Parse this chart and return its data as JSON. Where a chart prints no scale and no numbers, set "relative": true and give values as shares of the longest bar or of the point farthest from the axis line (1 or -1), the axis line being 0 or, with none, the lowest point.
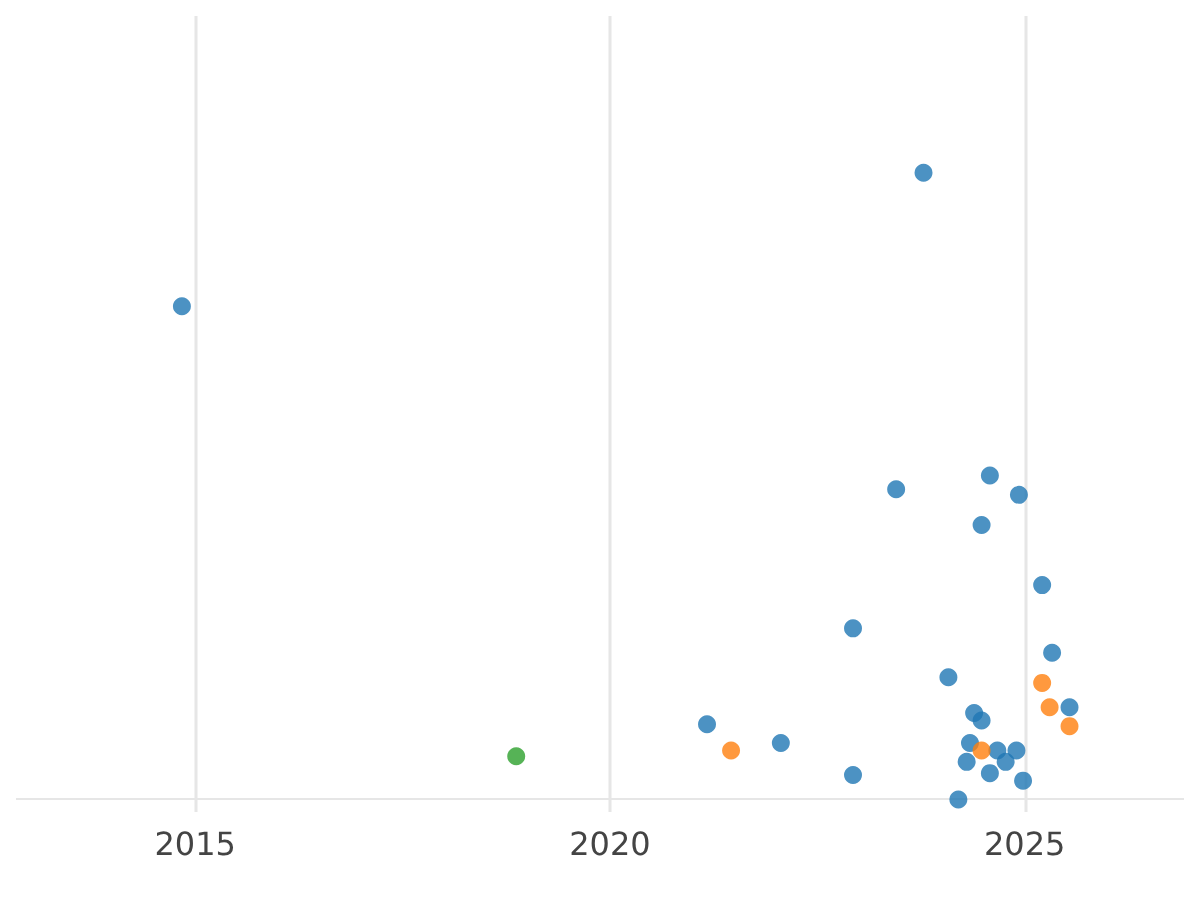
{
  "chart_data": {
    "type": "scatter",
    "relative": true,
    "grid": "x",
    "marker": "circle",
    "xlim": [
      2012.84,
      2026.92
    ],
    "xticks": [
      2015,
      2020,
      2025
    ],
    "series": [
      {
        "color": "#1f77b4",
        "x": [
          2014.84,
          2023.78,
          2023.45,
          2024.58,
          2024.93,
          2024.48,
          2025.21,
          2022.93,
          2025.33,
          2024.08,
          2025.54,
          2024.39,
          2024.48,
          2021.17,
          2022.06,
          2024.34,
          2024.3,
          2024.67,
          2024.81,
          2024.9,
          2024.77,
          2024.58,
          2024.98,
          2022.93,
          2024.2
        ],
        "values": [
          0.787,
          1,
          0.495,
          0.517,
          0.486,
          0.438,
          0.342,
          0.273,
          0.234,
          0.195,
          0.147,
          0.138,
          0.126,
          0.12,
          0.09,
          0.09,
          0.06,
          0.078,
          null,
          0.078,
          0.06,
          0.042,
          0.03,
          0.039,
          0
        ]
      },
      {
        "color": "#ff7f0e",
        "x": [
          2021.46,
          2024.48,
          2025.21,
          2025.3,
          2025.54
        ],
        "values": [
          0.078,
          0.078,
          0.186,
          0.147,
          0.117
        ]
      },
      {
        "color": "#2ca02c",
        "x": [
          2018.87
        ],
        "values": [
          0.069
        ]
      }
    ]
  }
}
